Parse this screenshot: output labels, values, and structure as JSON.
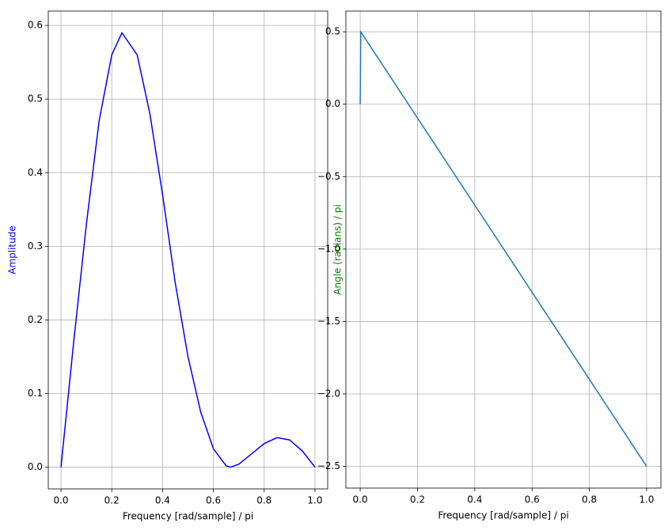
{
  "chart_data": [
    {
      "type": "line",
      "xlabel": "Frequency [rad/sample] / pi",
      "ylabel": "Amplitude",
      "ylabel_color": "#0000ff",
      "x": [
        0,
        0.05,
        0.1,
        0.15,
        0.2,
        0.24,
        0.3,
        0.35,
        0.4,
        0.45,
        0.5,
        0.55,
        0.6,
        0.65,
        0.667,
        0.7,
        0.75,
        0.8,
        0.85,
        0.9,
        0.95,
        1.0
      ],
      "series": [
        {
          "name": "Amplitude",
          "color": "#0000ff",
          "values": [
            0,
            0.17,
            0.33,
            0.47,
            0.56,
            0.59,
            0.56,
            0.48,
            0.37,
            0.25,
            0.15,
            0.075,
            0.025,
            0.002,
            0,
            0.004,
            0.018,
            0.032,
            0.04,
            0.037,
            0.022,
            0
          ]
        }
      ],
      "xlim": [
        -0.05,
        1.05
      ],
      "ylim": [
        -0.0295,
        0.6195
      ],
      "xticks": [
        {
          "value": 0,
          "label": "0.0"
        },
        {
          "value": 0.2,
          "label": "0.2"
        },
        {
          "value": 0.4,
          "label": "0.4"
        },
        {
          "value": 0.6,
          "label": "0.6"
        },
        {
          "value": 0.8,
          "label": "0.8"
        },
        {
          "value": 1,
          "label": "1.0"
        }
      ],
      "yticks": [
        {
          "value": 0,
          "label": "0.0"
        },
        0.1,
        0.2,
        0.3,
        0.4,
        0.5,
        0.6
      ],
      "grid": true
    },
    {
      "type": "line",
      "xlabel": "Frequency [rad/sample] / pi",
      "ylabel": "Angle (radians) / pi",
      "ylabel_color": "#008000",
      "x": [
        0,
        0.002,
        1
      ],
      "series": [
        {
          "name": "Angle",
          "color": "#1f77b4",
          "values": [
            0,
            0.5,
            -2.5
          ]
        }
      ],
      "xlim": [
        -0.05,
        1.05
      ],
      "ylim": [
        -2.65,
        0.643
      ],
      "xticks": [
        {
          "value": 0,
          "label": "0.0"
        },
        {
          "value": 0.2,
          "label": "0.2"
        },
        {
          "value": 0.4,
          "label": "0.4"
        },
        {
          "value": 0.6,
          "label": "0.6"
        },
        {
          "value": 0.8,
          "label": "0.8"
        },
        {
          "value": 1,
          "label": "1.0"
        }
      ],
      "yticks": [
        {
          "value": -2.5,
          "label": "−2.5"
        },
        {
          "value": -2,
          "label": "−2.0"
        },
        {
          "value": -1.5,
          "label": "−1.5"
        },
        {
          "value": -1,
          "label": "−1.0"
        },
        {
          "value": -0.5,
          "label": "−0.5"
        },
        {
          "value": 0,
          "label": "0.0"
        },
        {
          "value": 0.5,
          "label": "0.5"
        }
      ],
      "grid": true
    }
  ]
}
